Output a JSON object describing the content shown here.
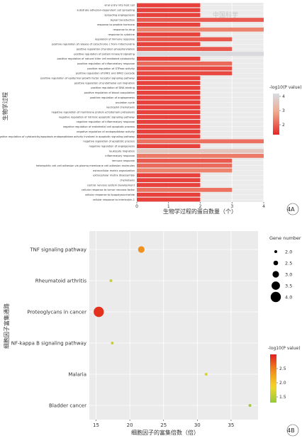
{
  "watermark": "中国科学",
  "panelA": {
    "label": "4A",
    "chart_data": {
      "type": "bar",
      "orientation": "horizontal",
      "ylabel": "生物学过程",
      "xlabel": "生物学过程的蛋白数量（个）",
      "xlim": [
        0,
        4
      ],
      "xticks": [
        "0",
        "1",
        "2",
        "3",
        "4"
      ],
      "colorbar_title": "-log10(P value)",
      "colorbar_ticks": [
        "2",
        "3",
        "4"
      ],
      "colorbar_range": [
        1.3,
        4.2
      ],
      "categories": [
        "viral entry into host cell",
        "substrate adhesion-dependent cell spreading",
        "spreading angiogenesis",
        "signal transduction",
        "response to peptide hormone",
        "response to drug",
        "response to cytokine",
        "regulation of immune response",
        "positive regulation of release of cytochrome c from mitochondria",
        "positive regulation of protein phosphorylation",
        "positive regulation of protein kinase B signaling",
        "positive regulation of natural killer cell mediated cytotoxicity",
        "positive regulation of inflammatory response",
        "positive regulation of GTPase activity",
        "positive regulation of ERK1 and ERK2 cascade",
        "positive regulation of epidermal growth factor receptor signaling pathway",
        "positive regulation of endothelial cell migration",
        "positive regulation of DNA binding",
        "positive regulation of blood coagulation",
        "positive regulation of angiogenesis",
        "ovulation cycle",
        "neutrophil chemotaxis",
        "negative regulation of membrane protein ectodomain proteolysis",
        "negative regulation of intrinsic apoptotic signaling pathway",
        "negative regulation of inflammatory response",
        "negative regulation of endothelial cell apoptotic process",
        "negative regulation of endopeptidase activity",
        "negative regulation of cytotoxicity/apoptosis endopeptidase activity involved in apoptotic signaling pathway",
        "negative regulation of apoptotic process",
        "negative regulation of angiogenesis",
        "leukocyte migration",
        "inflammatory response",
        "immune response",
        "heterophilic cell-cell adhesion via plasma membrane cell adhesion molecules",
        "extracellular matrix organization",
        "extracellular matrix disassembly",
        "chemotaxis",
        "central nervous system development",
        "cellular response to tumor necrosis factor",
        "cellular response to lipopolysaccharide",
        "cellular response to interleukin-1"
      ],
      "values": [
        2,
        2,
        2,
        4,
        2,
        4,
        2,
        3,
        2,
        3,
        4,
        2,
        3,
        3,
        3,
        2,
        2,
        2,
        2,
        2,
        2,
        2,
        2,
        2,
        2,
        2,
        2,
        2,
        4,
        2,
        4,
        4,
        3,
        3,
        3,
        2,
        2,
        2,
        3,
        2,
        2
      ],
      "pvalues": [
        1.6,
        1.6,
        1.6,
        1.9,
        1.6,
        2.4,
        1.6,
        1.9,
        1.6,
        1.9,
        4.1,
        1.6,
        2.1,
        1.7,
        1.7,
        1.6,
        1.6,
        1.6,
        1.6,
        1.6,
        1.6,
        1.6,
        1.6,
        1.6,
        1.6,
        1.6,
        1.6,
        1.6,
        2.2,
        1.6,
        3.6,
        2.3,
        1.9,
        2.1,
        2.4,
        1.6,
        1.6,
        1.6,
        2.2,
        1.6,
        1.6
      ],
      "grid": true
    }
  },
  "panelB": {
    "label": "4B",
    "chart_data": {
      "type": "scatter",
      "xlabel": "细胞因子的富集倍数（倍）",
      "ylabel": "细胞因子富集通路",
      "xlim": [
        14,
        39
      ],
      "xticks": [
        15,
        20,
        25,
        30,
        35
      ],
      "categories": [
        "TNF signaling pathway",
        "Rheumatoid arthritis",
        "Proteoglycans in cancer",
        "NF-kappa B signaling pathway",
        "Malaria",
        "Bladder cancer"
      ],
      "x": [
        21.7,
        17.2,
        15.4,
        17.4,
        31.3,
        37.8
      ],
      "gene_number": [
        3,
        2,
        4,
        2,
        2,
        2
      ],
      "pvalue": [
        2.4,
        1.6,
        2.9,
        1.6,
        1.7,
        1.4
      ],
      "size_legend_title": "Gene number",
      "size_legend": [
        "2.0",
        "2.5",
        "3.0",
        "3.5",
        "4.0"
      ],
      "colorbar_title": "-log10(P value)",
      "colorbar_ticks": [
        "2.5",
        "2.0",
        "1.5"
      ],
      "colorbar_range": [
        1.3,
        3.0
      ],
      "grid": true
    }
  }
}
